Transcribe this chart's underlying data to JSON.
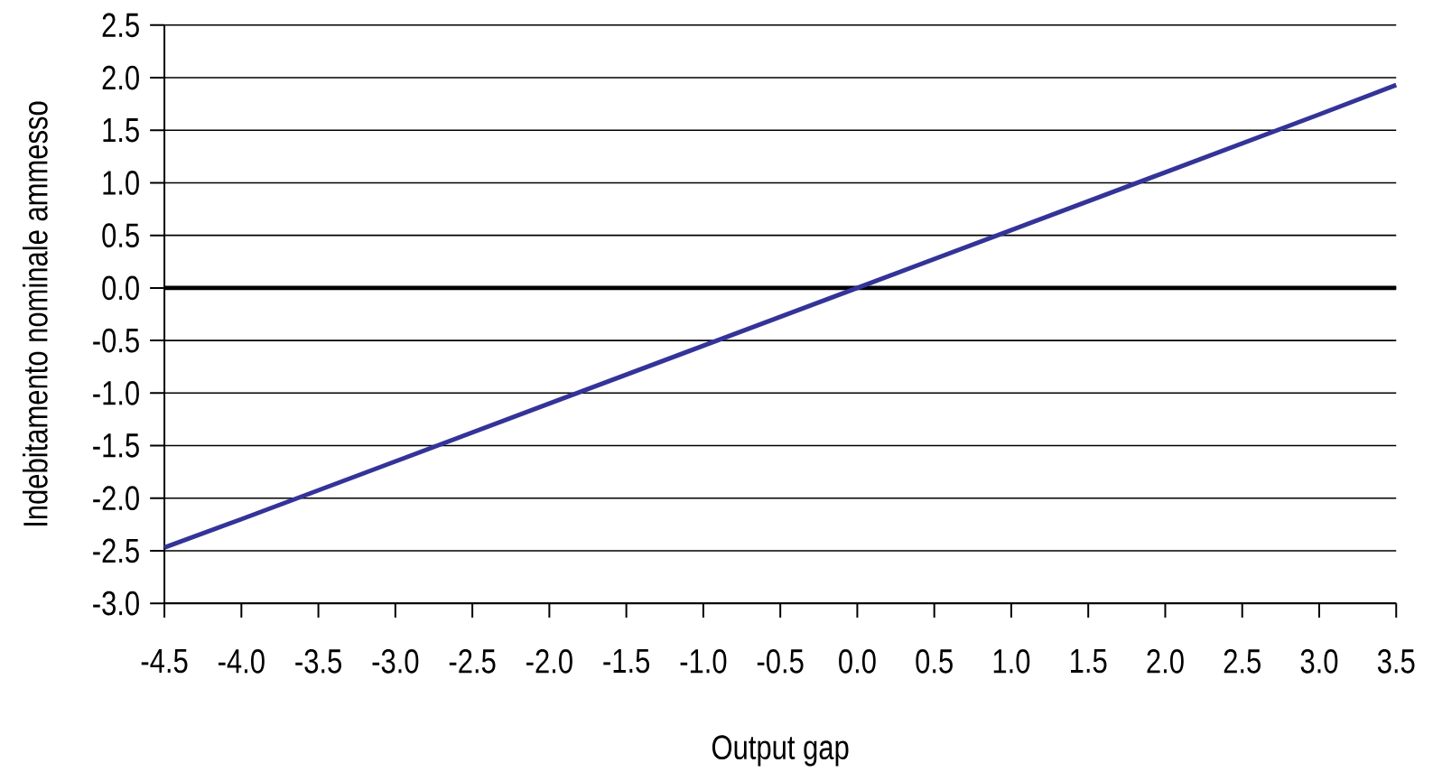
{
  "chart_data": {
    "type": "line",
    "xlabel": "Output gap",
    "ylabel": "Indebitamento nominale ammesso",
    "x": [
      -4.5,
      -4.0,
      -3.0,
      -2.0,
      -1.0,
      0.0,
      1.0,
      2.0,
      3.0,
      3.5
    ],
    "series": [
      {
        "color": "#333399",
        "values": [
          -2.47,
          -2.2,
          -1.65,
          -1.1,
          -0.55,
          0.0,
          0.55,
          1.1,
          1.65,
          1.93
        ]
      }
    ],
    "xlim": [
      -4.5,
      3.5
    ],
    "xticks": [
      -4.5,
      {
        "value": -4,
        "label": "-4.0"
      },
      -3.5,
      {
        "value": -3,
        "label": "-3.0"
      },
      -2.5,
      {
        "value": -2,
        "label": "-2.0"
      },
      -1.5,
      {
        "value": -1,
        "label": "-1.0"
      },
      -0.5,
      {
        "value": 0,
        "label": "0.0"
      },
      0.5,
      {
        "value": 1,
        "label": "1.0"
      },
      1.5,
      {
        "value": 2,
        "label": "2.0"
      },
      2.5,
      {
        "value": 3,
        "label": "3.0"
      },
      3.5
    ],
    "ylim": [
      -3.0,
      2.5
    ],
    "yticks": [
      {
        "value": -3,
        "label": "-3.0"
      },
      -2.5,
      {
        "value": -2,
        "label": "-2.0"
      },
      -1.5,
      {
        "value": -1,
        "label": "-1.0"
      },
      -0.5,
      {
        "value": 0,
        "label": "0.0"
      },
      0.5,
      {
        "value": 1,
        "label": "1.0"
      },
      1.5,
      {
        "value": 2,
        "label": "2.0"
      },
      2.5
    ],
    "grid": "y",
    "marker": "none",
    "line_style": "solid",
    "ref_lines": [
      {
        "axis": "y",
        "value": 0,
        "color": "#000000"
      }
    ]
  }
}
